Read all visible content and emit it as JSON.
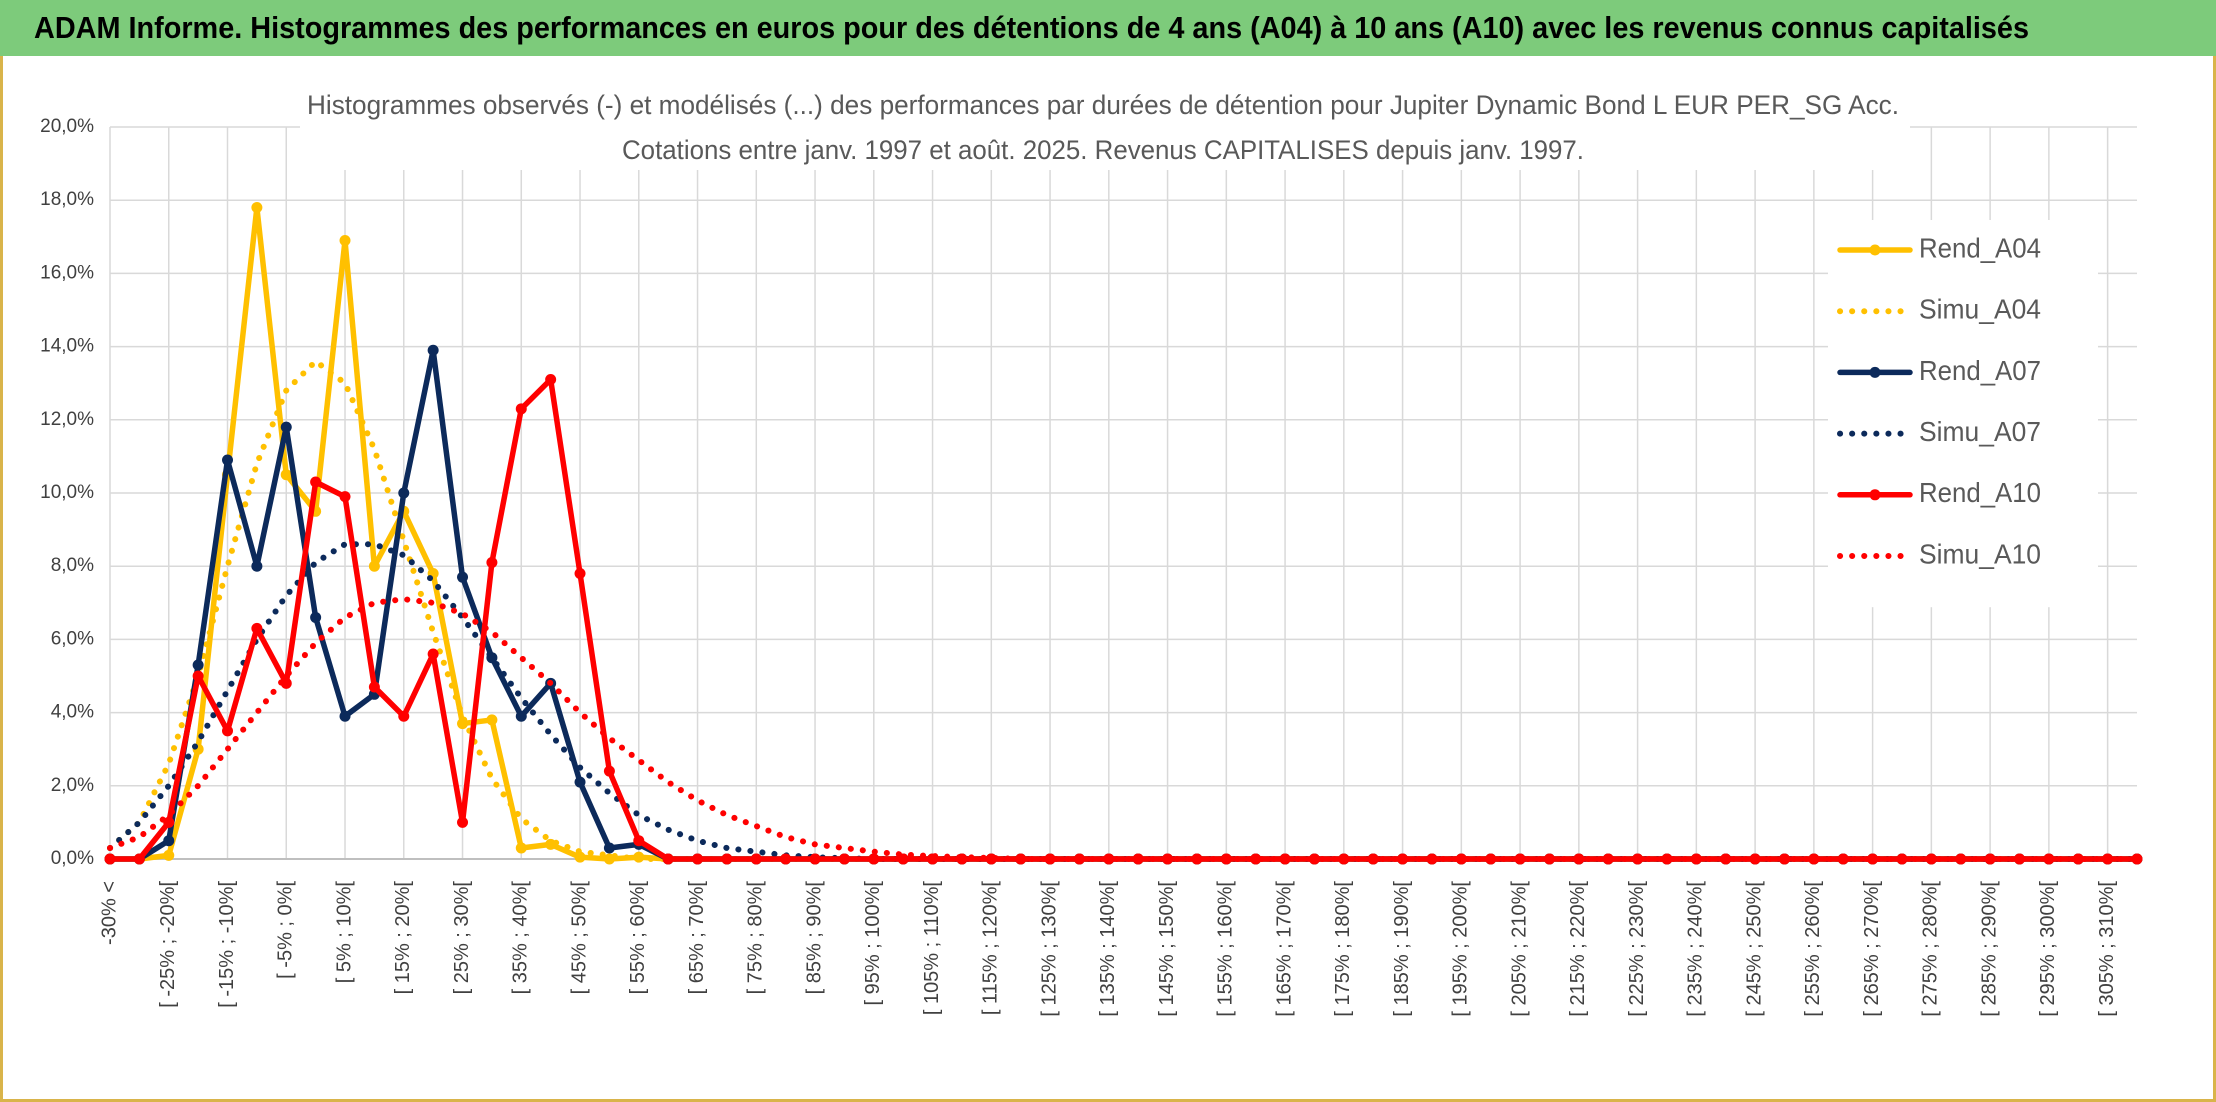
{
  "header": {
    "title": "ADAM Informe. Histogrammes des performances en euros pour des détentions de 4 ans (A04) à 10 ans (A10) avec les revenus connus capitalisés"
  },
  "chart_data": {
    "type": "line",
    "title": "Histogrammes observés (-) et modélisés (...) des performances par durées de détention pour Jupiter Dynamic Bond L EUR PER_SG Acc.",
    "subtitle": "Cotations entre janv. 1997 et août. 2025. Revenus CAPITALISES depuis janv. 1997.",
    "categories": [
      "-30% <",
      null,
      "[ -25% ; -20%[",
      null,
      "[ -15% ; -10%[",
      null,
      "[ -5% ; 0%[",
      null,
      "[ 5% ; 10%[",
      null,
      "[ 15% ; 20%[",
      null,
      "[ 25% ; 30%[",
      null,
      "[ 35% ; 40%[",
      null,
      "[ 45% ; 50%[",
      null,
      "[ 55% ; 60%[",
      null,
      "[ 65% ; 70%[",
      null,
      "[ 75% ; 80%[",
      null,
      "[ 85% ; 90%[",
      null,
      "[ 95% ; 100%[",
      null,
      "[ 105% ; 110%[",
      null,
      "[ 115% ; 120%[",
      null,
      "[ 125% ; 130%[",
      null,
      "[ 135% ; 140%[",
      null,
      "[ 145% ; 150%[",
      null,
      "[ 155% ; 160%[",
      null,
      "[ 165% ; 170%[",
      null,
      "[ 175% ; 180%[",
      null,
      "[ 185% ; 190%[",
      null,
      "[ 195% ; 200%[",
      null,
      "[ 205% ; 210%[",
      null,
      "[ 215% ; 220%[",
      null,
      "[ 225% ; 230%[",
      null,
      "[ 235% ; 240%[",
      null,
      "[ 245% ; 250%[",
      null,
      "[ 255% ; 260%[",
      null,
      "[ 265% ; 270%[",
      null,
      "[ 275% ; 280%[",
      null,
      "[ 285% ; 290%[",
      null,
      "[ 295% ; 300%[",
      null,
      "[ 305% ; 310%[",
      null
    ],
    "series": [
      {
        "name": "Rend_A04",
        "color": "#FFC000",
        "style": "solid",
        "markers": true,
        "values": [
          0,
          0,
          0.1,
          3,
          10.5,
          17.8,
          10.5,
          9.5,
          16.9,
          8,
          9.5,
          7.8,
          3.7,
          3.8,
          0.3,
          0.4,
          0.05,
          0,
          0.05,
          0,
          0,
          0,
          0,
          0,
          0,
          0,
          0,
          0,
          0,
          0,
          0,
          0,
          0,
          0,
          0,
          0,
          0,
          0,
          0,
          0,
          0,
          0,
          0,
          0,
          0,
          0,
          0,
          0,
          0,
          0,
          0,
          0,
          0,
          0,
          0,
          0,
          0,
          0,
          0,
          0,
          0,
          0,
          0,
          0,
          0,
          0,
          0,
          0,
          0,
          0
        ]
      },
      {
        "name": "Simu_A04",
        "color": "#FFC000",
        "style": "dotted",
        "markers": false,
        "values": [
          0.3,
          1,
          2.6,
          5,
          8,
          10.8,
          12.8,
          13.6,
          13,
          11.2,
          8.7,
          6.2,
          3.9,
          2.2,
          1.1,
          0.5,
          0.2,
          0.1,
          0,
          0,
          0,
          0,
          0,
          0,
          0,
          0,
          0,
          0,
          0,
          0,
          0,
          0,
          0,
          0,
          0,
          0,
          0,
          0,
          0,
          0,
          0,
          0,
          0,
          0,
          0,
          0,
          0,
          0,
          0,
          0,
          0,
          0,
          0,
          0,
          0,
          0,
          0,
          0,
          0,
          0,
          0,
          0,
          0,
          0,
          0,
          0,
          0,
          0,
          0,
          0
        ]
      },
      {
        "name": "Rend_A07",
        "color": "#0C2A5B",
        "style": "solid",
        "markers": true,
        "values": [
          0,
          0,
          0.5,
          5.3,
          10.9,
          8,
          11.8,
          6.6,
          3.9,
          4.5,
          10,
          13.9,
          7.7,
          5.5,
          3.9,
          4.8,
          2.1,
          0.3,
          0.4,
          0,
          0,
          0,
          0,
          0,
          0,
          0,
          0,
          0,
          0,
          0,
          0,
          0,
          0,
          0,
          0,
          0,
          0,
          0,
          0,
          0,
          0,
          0,
          0,
          0,
          0,
          0,
          0,
          0,
          0,
          0,
          0,
          0,
          0,
          0,
          0,
          0,
          0,
          0,
          0,
          0,
          0,
          0,
          0,
          0,
          0,
          0,
          0,
          0,
          0,
          0
        ]
      },
      {
        "name": "Simu_A07",
        "color": "#0C2A5B",
        "style": "dotted",
        "markers": false,
        "values": [
          0.3,
          1,
          2,
          3.2,
          4.6,
          6,
          7.2,
          8.1,
          8.6,
          8.6,
          8.3,
          7.6,
          6.6,
          5.5,
          4.4,
          3.4,
          2.5,
          1.8,
          1.2,
          0.8,
          0.5,
          0.3,
          0.2,
          0.1,
          0.05,
          0.02,
          0,
          0,
          0,
          0,
          0,
          0,
          0,
          0,
          0,
          0,
          0,
          0,
          0,
          0,
          0,
          0,
          0,
          0,
          0,
          0,
          0,
          0,
          0,
          0,
          0,
          0,
          0,
          0,
          0,
          0,
          0,
          0,
          0,
          0,
          0,
          0,
          0,
          0,
          0,
          0,
          0,
          0,
          0,
          0
        ]
      },
      {
        "name": "Rend_A10",
        "color": "#FF0000",
        "style": "solid",
        "markers": true,
        "values": [
          0,
          0,
          1,
          5,
          3.5,
          6.3,
          4.8,
          10.3,
          9.9,
          4.7,
          3.9,
          5.6,
          1,
          8.1,
          12.3,
          13.1,
          7.8,
          2.4,
          0.5,
          0,
          0,
          0,
          0,
          0,
          0,
          0,
          0,
          0,
          0,
          0,
          0,
          0,
          0,
          0,
          0,
          0,
          0,
          0,
          0,
          0,
          0,
          0,
          0,
          0,
          0,
          0,
          0,
          0,
          0,
          0,
          0,
          0,
          0,
          0,
          0,
          0,
          0,
          0,
          0,
          0,
          0,
          0,
          0,
          0,
          0,
          0,
          0,
          0,
          0,
          0
        ]
      },
      {
        "name": "Simu_A10",
        "color": "#FF0000",
        "style": "dotted",
        "markers": false,
        "values": [
          0.3,
          0.6,
          1.2,
          2,
          3,
          4,
          5,
          5.9,
          6.6,
          7,
          7.1,
          7,
          6.7,
          6.2,
          5.5,
          4.8,
          4,
          3.3,
          2.7,
          2.1,
          1.6,
          1.2,
          0.9,
          0.6,
          0.4,
          0.3,
          0.2,
          0.12,
          0.08,
          0.05,
          0.03,
          0,
          0,
          0,
          0,
          0,
          0,
          0,
          0,
          0,
          0,
          0,
          0,
          0,
          0,
          0,
          0,
          0,
          0,
          0,
          0,
          0,
          0,
          0,
          0,
          0,
          0,
          0,
          0,
          0,
          0,
          0,
          0,
          0,
          0,
          0,
          0,
          0,
          0,
          0
        ]
      }
    ],
    "ylim": [
      0,
      20
    ],
    "yticks": [
      {
        "value": 0,
        "label": "0,0%"
      },
      {
        "value": 2,
        "label": "2,0%"
      },
      {
        "value": 4,
        "label": "4,0%"
      },
      {
        "value": 6,
        "label": "6,0%"
      },
      {
        "value": 8,
        "label": "8,0%"
      },
      {
        "value": 10,
        "label": "10,0%"
      },
      {
        "value": 12,
        "label": "12,0%"
      },
      {
        "value": 14,
        "label": "14,0%"
      },
      {
        "value": 16,
        "label": "16,0%"
      },
      {
        "value": 18,
        "label": "18,0%"
      },
      {
        "value": 20,
        "label": "20,0%"
      }
    ],
    "grid": true,
    "legend": "right"
  }
}
